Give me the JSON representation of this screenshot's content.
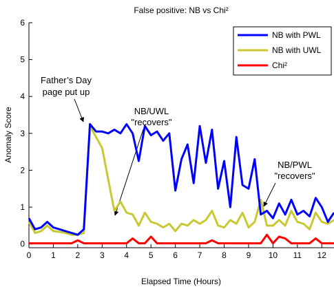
{
  "chart_data": {
    "type": "line",
    "title": "False positive: NB vs Chi²",
    "xlabel": "Elapsed Time (Hours)",
    "ylabel": "Anomaly Score",
    "x": [
      0,
      0.25,
      0.5,
      0.75,
      1,
      1.25,
      1.5,
      1.75,
      2,
      2.25,
      2.5,
      2.75,
      3,
      3.25,
      3.5,
      3.75,
      4,
      4.25,
      4.5,
      4.75,
      5,
      5.25,
      5.5,
      5.75,
      6,
      6.25,
      6.5,
      6.75,
      7,
      7.25,
      7.5,
      7.75,
      8,
      8.25,
      8.5,
      8.75,
      9,
      9.25,
      9.5,
      9.75,
      10,
      10.25,
      10.5,
      10.75,
      11,
      11.25,
      11.5,
      11.75,
      12,
      12.25,
      12.5
    ],
    "series": [
      {
        "name": "NB with PWL",
        "color": "#0000ff",
        "values": [
          0.7,
          0.4,
          0.45,
          0.6,
          0.45,
          0.4,
          0.35,
          0.3,
          0.25,
          0.4,
          3.25,
          3.05,
          3.05,
          3.0,
          3.1,
          3.0,
          3.25,
          3.0,
          2.25,
          3.2,
          2.95,
          3.05,
          2.8,
          3.0,
          1.45,
          2.3,
          2.7,
          1.65,
          3.2,
          2.2,
          3.1,
          1.5,
          2.25,
          1.0,
          2.9,
          1.6,
          1.5,
          2.3,
          0.8,
          0.9,
          0.7,
          1.1,
          0.8,
          1.2,
          0.8,
          0.9,
          0.75,
          1.25,
          1.0,
          0.6,
          0.85
        ]
      },
      {
        "name": "NB with UWL",
        "color": "#c8c832",
        "values": [
          0.6,
          0.3,
          0.35,
          0.5,
          0.35,
          0.33,
          0.3,
          0.25,
          0.25,
          0.3,
          3.2,
          2.9,
          2.6,
          1.75,
          0.9,
          1.15,
          0.85,
          0.8,
          0.5,
          0.85,
          0.6,
          0.55,
          0.45,
          0.55,
          0.35,
          0.55,
          0.5,
          0.65,
          0.55,
          0.65,
          0.9,
          0.5,
          0.45,
          0.65,
          0.55,
          0.85,
          0.45,
          0.6,
          1.2,
          0.5,
          0.5,
          0.65,
          0.5,
          0.9,
          0.6,
          0.55,
          0.4,
          0.85,
          0.6,
          0.55,
          0.65
        ]
      },
      {
        "name": "Chi²",
        "color": "#ff0000",
        "values": [
          0.02,
          0.02,
          0.02,
          0.02,
          0.02,
          0.02,
          0.02,
          0.02,
          0.1,
          0.02,
          0.02,
          0.02,
          0.02,
          0.02,
          0.02,
          0.02,
          0.02,
          0.15,
          0.02,
          0.02,
          0.2,
          0.02,
          0.02,
          0.02,
          0.02,
          0.02,
          0.02,
          0.02,
          0.02,
          0.02,
          0.1,
          0.02,
          0.02,
          0.02,
          0.02,
          0.02,
          0.02,
          0.02,
          0.02,
          0.25,
          0.02,
          0.2,
          0.15,
          0.02,
          0.02,
          0.02,
          0.02,
          0.15,
          0.02,
          0.02,
          0.02
        ]
      }
    ],
    "xlim": [
      0,
      12.5
    ],
    "xticks": [
      0,
      1,
      2,
      3,
      4,
      5,
      6,
      7,
      8,
      9,
      10,
      11,
      12
    ],
    "ylim": [
      -0.1,
      6
    ],
    "yticks": [
      0,
      1,
      2,
      3,
      4,
      5,
      6
    ],
    "grid": false,
    "legend": "upper right",
    "annotations": [
      {
        "lines": [
          "Father’s Day",
          "page put up"
        ]
      },
      {
        "lines": [
          "NB/UWL",
          "\"recovers\""
        ]
      },
      {
        "lines": [
          "NB/PWL",
          "\"recovers\""
        ]
      }
    ]
  }
}
